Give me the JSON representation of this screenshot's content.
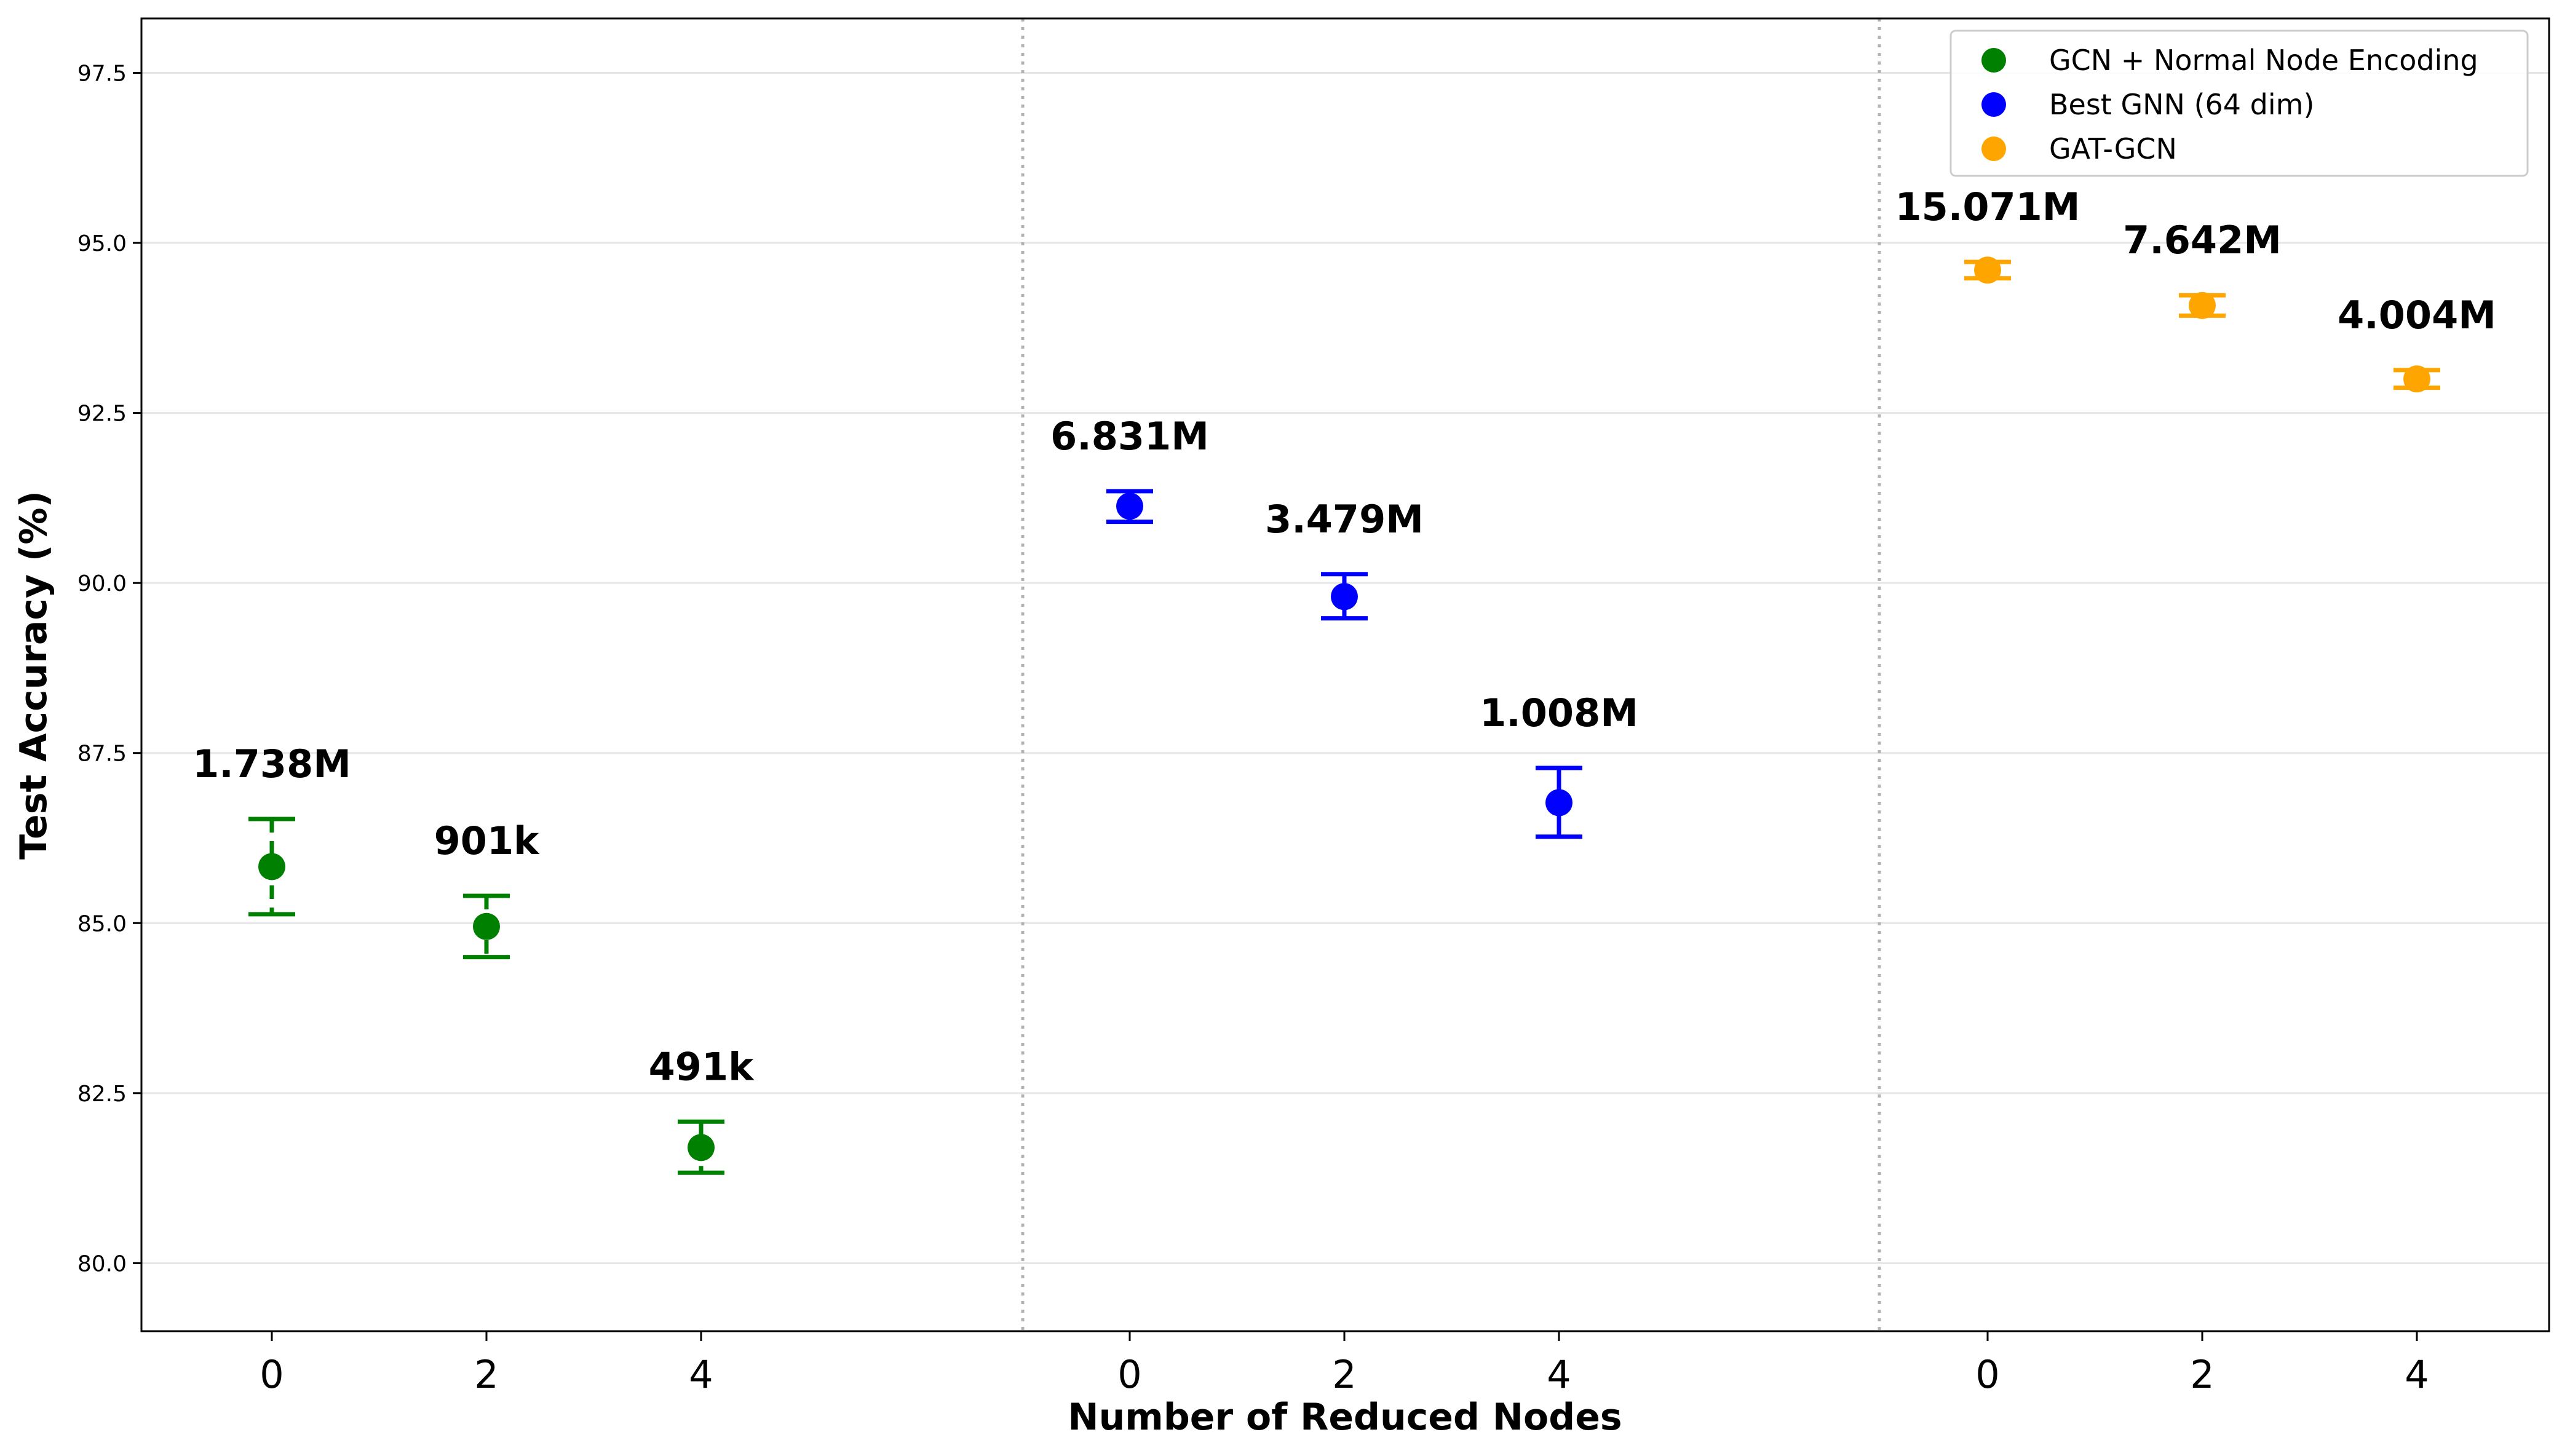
{
  "chart_data": {
    "type": "scatter",
    "xlabel": "Number of Reduced Nodes",
    "ylabel": "Test Accuracy (%)",
    "ylim": [
      79.0,
      98.3
    ],
    "yticks": [
      "80.0",
      "82.5",
      "85.0",
      "87.5",
      "90.0",
      "92.5",
      "95.0",
      "97.5"
    ],
    "grid": "horizontal",
    "legend_position": "top-right",
    "groups": [
      {
        "name": "GCN + Normal Node Encoding",
        "color": "#008000",
        "error_style": "dashed",
        "points": [
          {
            "x": "0",
            "y": 85.83,
            "err_low": 85.13,
            "err_high": 86.53,
            "label": "1.738M"
          },
          {
            "x": "2",
            "y": 84.95,
            "err_low": 84.5,
            "err_high": 85.4,
            "label": "901k"
          },
          {
            "x": "4",
            "y": 81.7,
            "err_low": 81.33,
            "err_high": 82.08,
            "label": "491k"
          }
        ]
      },
      {
        "name": "Best GNN (64 dim)",
        "color": "#0000ff",
        "error_style": "solid",
        "points": [
          {
            "x": "0",
            "y": 91.13,
            "err_low": 90.9,
            "err_high": 91.35,
            "label": "6.831M"
          },
          {
            "x": "2",
            "y": 89.8,
            "err_low": 89.48,
            "err_high": 90.13,
            "label": "3.479M"
          },
          {
            "x": "4",
            "y": 86.77,
            "err_low": 86.27,
            "err_high": 87.28,
            "label": "1.008M"
          }
        ]
      },
      {
        "name": "GAT-GCN",
        "color": "#ffa500",
        "error_style": "solid",
        "points": [
          {
            "x": "0",
            "y": 94.6,
            "err_low": 94.48,
            "err_high": 94.72,
            "label": "15.071M"
          },
          {
            "x": "2",
            "y": 94.08,
            "err_low": 93.93,
            "err_high": 94.23,
            "label": "7.642M"
          },
          {
            "x": "4",
            "y": 93.0,
            "err_low": 92.87,
            "err_high": 93.13,
            "label": "4.004M"
          }
        ]
      }
    ]
  }
}
